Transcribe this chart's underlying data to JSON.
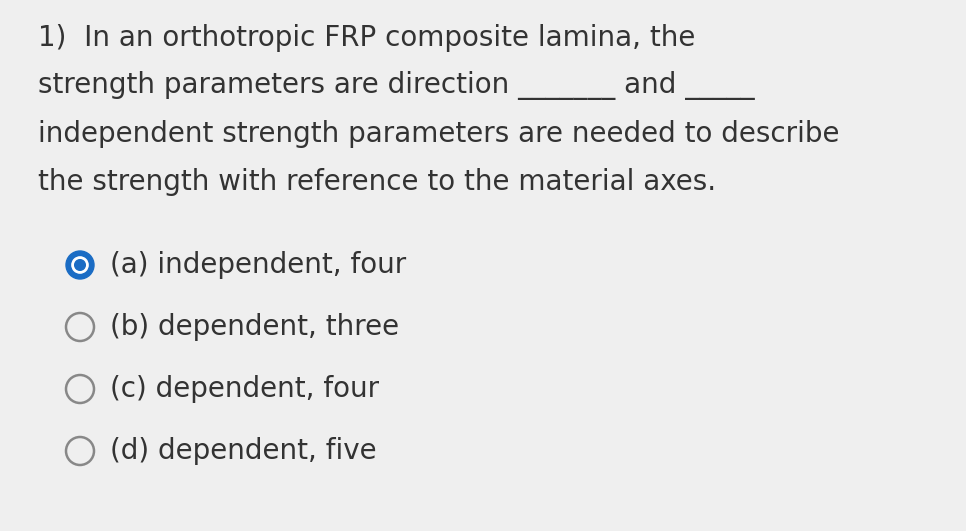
{
  "background_color": "#efefef",
  "question_lines": [
    "1)  In an orthotropic FRP composite lamina, the",
    "strength parameters are direction _______ and _____",
    "independent strength parameters are needed to describe",
    "the strength with reference to the material axes."
  ],
  "options": [
    "(a) independent, four",
    "(b) dependent, three",
    "(c) dependent, four",
    "(d) dependent, five"
  ],
  "selected_index": 0,
  "text_color": "#333333",
  "circle_selected_outer": "#1a6cc4",
  "circle_selected_inner": "#ffffff",
  "circle_selected_dot": "#1a6cc4",
  "circle_unselected_edge": "#888888",
  "circle_unselected_fill": "#efefef",
  "question_fontsize": 20,
  "option_fontsize": 20,
  "fig_width": 9.66,
  "fig_height": 5.31,
  "dpi": 100
}
